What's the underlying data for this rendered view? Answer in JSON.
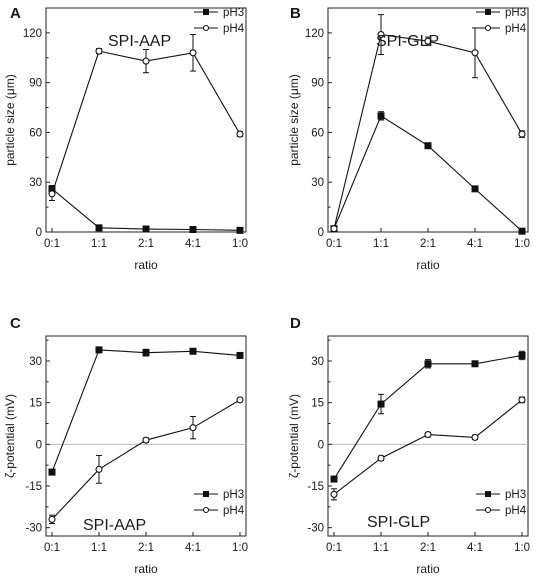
{
  "chart_data": [
    {
      "type": "line",
      "panel": "A",
      "annotation": "SPI-AAP",
      "xlabel": "ratio",
      "ylabel": "particle size (μm)",
      "categories": [
        "0:1",
        "1:1",
        "2:1",
        "4:1",
        "1:0"
      ],
      "ylim": [
        0,
        135
      ],
      "yticks": [
        0,
        30,
        60,
        90,
        120
      ],
      "zero_line": false,
      "legend": "top-right",
      "series": [
        {
          "name": "pH3",
          "marker": "filled-square",
          "values": [
            26,
            2.5,
            1.8,
            1.5,
            1.0
          ],
          "errors": [
            2,
            1,
            1,
            1,
            0.5
          ]
        },
        {
          "name": "pH4",
          "marker": "open-circle",
          "values": [
            23,
            109,
            103,
            108,
            59
          ],
          "errors": [
            4,
            1.5,
            7,
            11,
            1.5
          ]
        }
      ]
    },
    {
      "type": "line",
      "panel": "B",
      "annotation": "SPI-GLP",
      "xlabel": "ratio",
      "ylabel": "particle size (μm)",
      "categories": [
        "0:1",
        "1:1",
        "2:1",
        "4:1",
        "1:0"
      ],
      "ylim": [
        0,
        135
      ],
      "yticks": [
        0,
        30,
        60,
        90,
        120
      ],
      "zero_line": false,
      "legend": "top-right",
      "series": [
        {
          "name": "pH3",
          "marker": "filled-square",
          "values": [
            2,
            70,
            52,
            26,
            0.5
          ],
          "errors": [
            0.5,
            2.5,
            1,
            1,
            0.5
          ]
        },
        {
          "name": "pH4",
          "marker": "open-circle",
          "values": [
            2,
            119,
            115,
            108,
            59
          ],
          "errors": [
            0.5,
            12,
            2.5,
            15,
            2
          ]
        }
      ]
    },
    {
      "type": "line",
      "panel": "C",
      "annotation": "SPI-AAP",
      "xlabel": "ratio",
      "ylabel": "ζ-potential (mV)",
      "categories": [
        "0:1",
        "1:1",
        "2:1",
        "4:1",
        "1:0"
      ],
      "ylim": [
        -33,
        39
      ],
      "yticks": [
        -30,
        -15,
        0,
        15,
        30
      ],
      "zero_line": true,
      "legend": "bottom-right",
      "series": [
        {
          "name": "pH3",
          "marker": "filled-square",
          "values": [
            -10,
            34,
            33,
            33.5,
            32
          ],
          "errors": [
            0.8,
            1,
            1.2,
            0.5,
            1
          ]
        },
        {
          "name": "pH4",
          "marker": "open-circle",
          "values": [
            -27,
            -9,
            1.5,
            6,
            16
          ],
          "errors": [
            1.5,
            5,
            0.8,
            4,
            0.5
          ]
        }
      ]
    },
    {
      "type": "line",
      "panel": "D",
      "annotation": "SPI-GLP",
      "xlabel": "ratio",
      "ylabel": "ζ-potential (mV)",
      "categories": [
        "0:1",
        "1:1",
        "2:1",
        "4:1",
        "1:0"
      ],
      "ylim": [
        -33,
        39
      ],
      "yticks": [
        -30,
        -15,
        0,
        15,
        30
      ],
      "zero_line": true,
      "legend": "bottom-right",
      "series": [
        {
          "name": "pH3",
          "marker": "filled-square",
          "values": [
            -12.5,
            14.5,
            29,
            29,
            32
          ],
          "errors": [
            1,
            3.5,
            1.5,
            0.5,
            1.5
          ]
        },
        {
          "name": "pH4",
          "marker": "open-circle",
          "values": [
            -18,
            -5,
            3.5,
            2.5,
            16
          ],
          "errors": [
            2,
            0.8,
            0.8,
            0.8,
            1
          ]
        }
      ]
    }
  ]
}
